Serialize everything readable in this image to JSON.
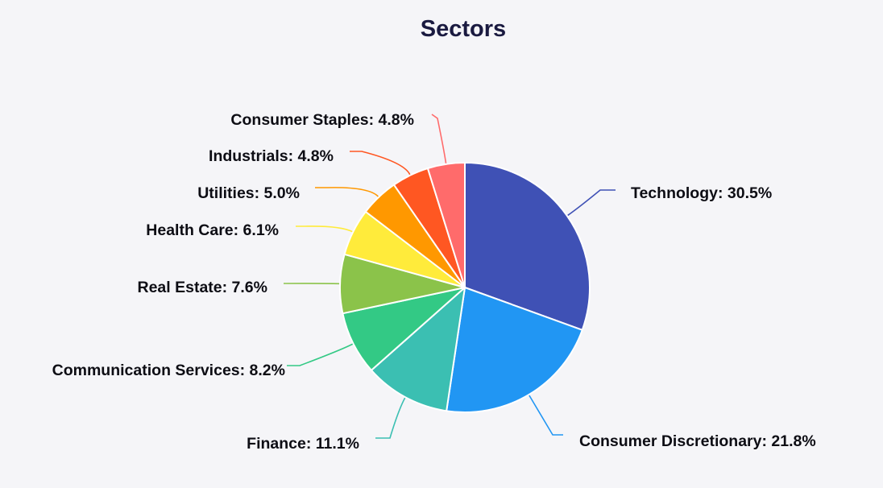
{
  "chart_data": {
    "type": "pie",
    "title": "Sectors",
    "label_format": "{category}: {value}%",
    "start_angle_deg": 0,
    "direction": "clockwise",
    "series": [
      {
        "name": "Sectors",
        "slices": [
          {
            "category": "Technology",
            "value": 30.5,
            "color": "#3f51b5"
          },
          {
            "category": "Consumer Discretionary",
            "value": 21.8,
            "color": "#2196f3"
          },
          {
            "category": "Finance",
            "value": 11.1,
            "color": "#3bbfb2"
          },
          {
            "category": "Communication Services",
            "value": 8.2,
            "color": "#33c985"
          },
          {
            "category": "Real Estate",
            "value": 7.6,
            "color": "#8bc34a"
          },
          {
            "category": "Health Care",
            "value": 6.1,
            "color": "#ffeb3b"
          },
          {
            "category": "Utilities",
            "value": 5.0,
            "color": "#ff9800"
          },
          {
            "category": "Industrials",
            "value": 4.8,
            "color": "#ff5722"
          },
          {
            "category": "Consumer Staples",
            "value": 4.8,
            "color": "#ff6b6b"
          }
        ]
      }
    ],
    "legend": "none",
    "data_labels": "outside-with-leader-lines"
  }
}
